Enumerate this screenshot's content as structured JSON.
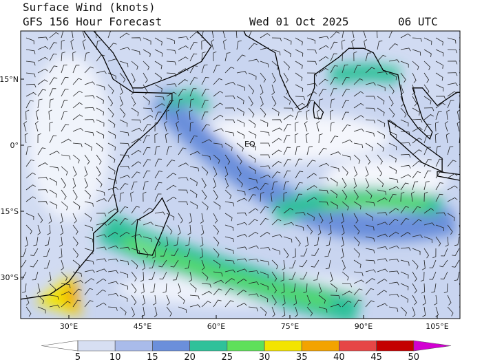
{
  "header": {
    "title": "Surface Wind (knots)",
    "subtitle": "GFS 156 Hour Forecast",
    "date": "Wed 01 Oct 2025",
    "time": "06 UTC"
  },
  "map": {
    "lat_labels": [
      "15°N",
      "0°",
      "15°S",
      "30°S"
    ],
    "lon_labels": [
      "30°E",
      "45°E",
      "60°E",
      "75°E",
      "90°E",
      "105°E"
    ],
    "equator_label": "EQ"
  },
  "colorbar": {
    "ticks": [
      5,
      10,
      15,
      20,
      25,
      30,
      35,
      40,
      45,
      50
    ],
    "colors": [
      "#ffffff",
      "#d7dff2",
      "#a9bbea",
      "#6b8fdb",
      "#2fc19a",
      "#5fe05a",
      "#f3e400",
      "#f3a300",
      "#e64646",
      "#c40000",
      "#d200d2"
    ]
  }
}
